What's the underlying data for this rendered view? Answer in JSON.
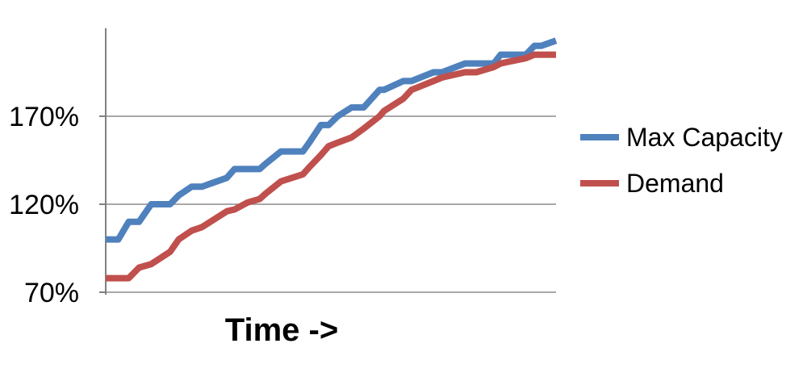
{
  "chart_data": {
    "type": "line",
    "title": "",
    "xlabel": "Time ->",
    "ylabel": "",
    "ylim": [
      70,
      220
    ],
    "yticks": [
      {
        "value": 70,
        "label": "70%"
      },
      {
        "value": 120,
        "label": "120%"
      },
      {
        "value": 170,
        "label": "170%"
      }
    ],
    "grid": true,
    "legend_position": "right",
    "x": [
      0,
      2.8,
      5.1,
      7.4,
      10.1,
      14.3,
      16.2,
      19.1,
      21.4,
      26.9,
      28.6,
      31.5,
      34.2,
      35.5,
      38.9,
      43.8,
      45.2,
      47.8,
      49.5,
      51.5,
      54.6,
      57.3,
      60.8,
      61.8,
      66.1,
      67.9,
      72.8,
      74.7,
      79.8,
      82.3,
      86.2,
      87.7,
      93.3,
      95.2,
      96.7,
      100
    ],
    "series": [
      {
        "name": "Max Capacity",
        "color": "#4F81BD",
        "values": [
          100,
          100,
          110,
          110,
          120,
          120,
          125,
          130,
          130,
          135,
          140,
          140,
          140,
          143,
          150,
          150,
          155,
          165,
          165,
          170,
          175,
          175,
          185,
          185,
          190,
          190,
          195,
          195,
          200,
          200,
          200,
          205,
          205,
          210,
          210,
          213
        ]
      },
      {
        "name": "Demand",
        "color": "#C0504D",
        "values": [
          78,
          78,
          78,
          84,
          86,
          93,
          100,
          105,
          107,
          116,
          117,
          121,
          123,
          126,
          133,
          137,
          141,
          148,
          153,
          155,
          158,
          163,
          170,
          173,
          180,
          185,
          190,
          192,
          195,
          195,
          198,
          200,
          203,
          205,
          205,
          205
        ]
      }
    ]
  }
}
